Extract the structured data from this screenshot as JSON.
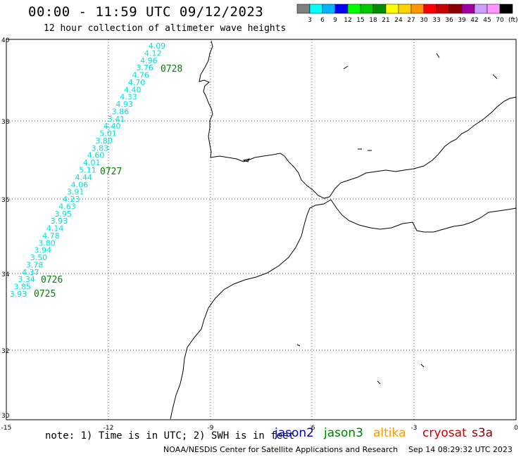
{
  "header": {
    "title": "00:00 - 11:59 UTC 09/12/2023",
    "subtitle": "12 hour collection of altimeter wave heights"
  },
  "colorbar": {
    "labels": [
      "3",
      "6",
      "9",
      "12",
      "15",
      "18",
      "21",
      "24",
      "27",
      "30",
      "33",
      "36",
      "39",
      "42",
      "45",
      "70"
    ],
    "unit": "(ft)",
    "colors": [
      "#808080",
      "#00ffff",
      "#00b4ff",
      "#0000ff",
      "#00ff00",
      "#00c800",
      "#008c00",
      "#ffff00",
      "#ffd200",
      "#ff9600",
      "#ff0000",
      "#c80000",
      "#8c0000",
      "#a000a0",
      "#c8a0ff",
      "#ff96ff",
      "#000000"
    ]
  },
  "axes": {
    "lon_ticks": [
      "-15",
      "-12",
      "-9",
      "-6",
      "-3",
      "0"
    ],
    "lat_ticks": [
      "30",
      "32",
      "34",
      "36",
      "38",
      "40"
    ]
  },
  "track": {
    "color": "#00e0e0",
    "time_color": "#008000",
    "swh": [
      "4.09",
      "4.12",
      "4.96",
      "3.76",
      "4.76",
      "4.70",
      "4.40",
      "4.33",
      "4.93",
      "3.86",
      "3.41",
      "4.40",
      "5.01",
      "3.80",
      "3.83",
      "4.60",
      "4.01",
      "5.11",
      "4.44",
      "4.06",
      "3.91",
      "4.23",
      "4.63",
      "3.95",
      "3.93",
      "4.14",
      "4.78",
      "3.80",
      "3.94",
      "3.50",
      "3.78",
      "4.37",
      "3.34",
      "3.85",
      "3.93"
    ],
    "times": [
      "0728",
      "0727",
      "0726",
      "0725"
    ]
  },
  "footer": {
    "note": "note: 1) Time is in UTC; 2) SWH is in feet",
    "satellites": [
      {
        "name": "jason2",
        "color": "#0000cc"
      },
      {
        "name": "jason3",
        "color": "#008000"
      },
      {
        "name": "altika",
        "color": "#ff9900"
      },
      {
        "name": "cryosat",
        "color": "#cc0000"
      },
      {
        "name": "s3a",
        "color": "#880000"
      }
    ],
    "credit": "NOAA/NESDIS Center for Satellite Applications and Research",
    "timestamp": "Sep 14 08:29:32 UTC 2023"
  }
}
